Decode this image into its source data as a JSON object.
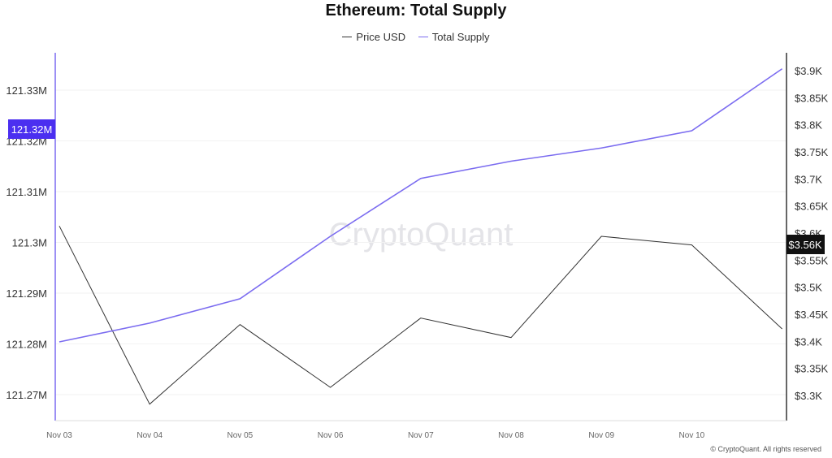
{
  "chart_data": {
    "type": "line",
    "title": "Ethereum: Total Supply",
    "categories": [
      "Nov 03",
      "Nov 04",
      "Nov 05",
      "Nov 06",
      "Nov 07",
      "Nov 08",
      "Nov 09",
      "Nov 10",
      ""
    ],
    "series": [
      {
        "name": "Price USD",
        "axis": "right",
        "color": "#333333",
        "values": [
          3613,
          3284,
          3431,
          3315,
          3443,
          3407,
          3594,
          3578,
          3423
        ]
      },
      {
        "name": "Total Supply",
        "axis": "left",
        "color": "#7b6cf0",
        "values": [
          121.2804,
          121.2841,
          121.2889,
          121.3012,
          121.3126,
          121.316,
          121.3186,
          121.322,
          121.3342
        ]
      }
    ],
    "left_axis": {
      "ticks": [
        "121.27M",
        "121.28M",
        "121.29M",
        "121.3M",
        "121.31M",
        "121.32M",
        "121.33M"
      ],
      "tick_values": [
        121.27,
        121.28,
        121.29,
        121.3,
        121.31,
        121.32,
        121.33
      ],
      "highlight": "121.32M",
      "highlight_color": "#4b2ff0"
    },
    "right_axis": {
      "ticks": [
        "$3.3K",
        "$3.35K",
        "$3.4K",
        "$3.45K",
        "$3.5K",
        "$3.55K",
        "$3.6K",
        "$3.65K",
        "$3.7K",
        "$3.75K",
        "$3.8K",
        "$3.85K",
        "$3.9K"
      ],
      "tick_values": [
        3300,
        3350,
        3400,
        3450,
        3500,
        3550,
        3600,
        3650,
        3700,
        3750,
        3800,
        3850,
        3900
      ],
      "highlight": "$3.56K",
      "highlight_color": "#111111"
    },
    "grid": true,
    "legend": "top-center"
  },
  "watermark": "CryptoQuant",
  "copyright": "© CryptoQuant. All rights reserved"
}
